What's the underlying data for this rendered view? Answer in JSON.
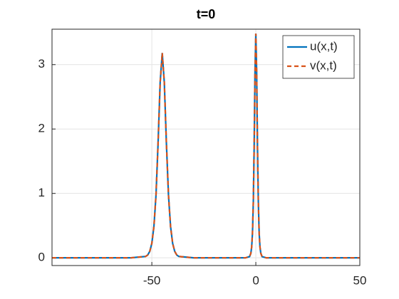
{
  "chart_data": {
    "type": "line",
    "title": "t=0",
    "x": [
      -98,
      -60,
      -53,
      -52,
      -51,
      -50,
      -49,
      -48,
      -47,
      -46,
      -45,
      -44,
      -43,
      -42,
      -41,
      -40,
      -39,
      -38,
      -37,
      -30,
      -5,
      -3,
      -2.4,
      -2,
      -1.6,
      -1.2,
      -0.8,
      -0.4,
      0,
      0.4,
      0.8,
      1.2,
      1.6,
      2,
      2.4,
      3,
      5,
      50
    ],
    "series": [
      {
        "name": "u(x,t)",
        "color": "#0072BD",
        "dash": false,
        "values": [
          0,
          0,
          0.021,
          0.043,
          0.1,
          0.225,
          0.486,
          0.975,
          1.78,
          2.72,
          3.18,
          2.72,
          1.78,
          0.975,
          0.486,
          0.225,
          0.1,
          0.043,
          0.021,
          0,
          0,
          0.019,
          0.07,
          0.167,
          0.387,
          0.87,
          1.74,
          2.88,
          3.48,
          2.88,
          1.74,
          0.87,
          0.387,
          0.167,
          0.07,
          0.019,
          0,
          0
        ]
      },
      {
        "name": "v(x,t)",
        "color": "#D95319",
        "dash": true,
        "values": [
          0,
          0,
          0.021,
          0.043,
          0.1,
          0.225,
          0.486,
          0.975,
          1.78,
          2.72,
          3.18,
          2.72,
          1.78,
          0.975,
          0.486,
          0.225,
          0.1,
          0.043,
          0.021,
          0,
          0,
          0.019,
          0.07,
          0.167,
          0.387,
          0.87,
          1.74,
          2.88,
          3.48,
          2.88,
          1.74,
          0.87,
          0.387,
          0.167,
          0.07,
          0.019,
          0,
          0
        ]
      }
    ],
    "xlim": [
      -98,
      50
    ],
    "xticks": [
      -50,
      0,
      50
    ],
    "ylim": [
      -0.12,
      3.55
    ],
    "yticks": [
      0,
      1,
      2,
      3
    ],
    "grid": true,
    "legend": "top-right"
  }
}
